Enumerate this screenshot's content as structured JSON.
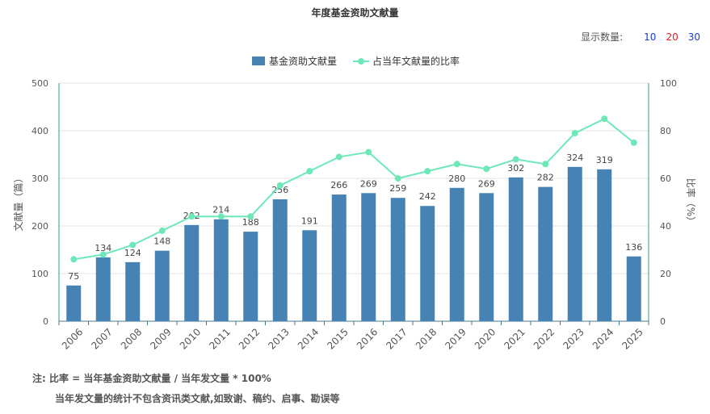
{
  "header": {
    "title": "年度基金资助文献量"
  },
  "display_count": {
    "label": "显示数量:",
    "options": [
      {
        "label": "10",
        "color": "#1a3ccc"
      },
      {
        "label": "20",
        "color": "#e02020"
      },
      {
        "label": "30",
        "color": "#1a3ccc"
      }
    ]
  },
  "notes": {
    "line1": "注:   比率 = 当年基金资助文献量 / 当年发文量 * 100%",
    "line2": "当年发文量的统计不包含资讯类文献,如致谢、稿约、启事、勘误等"
  },
  "chart_data": {
    "type": "bar",
    "title": "年度基金资助文献量",
    "categories": [
      "2006",
      "2007",
      "2008",
      "2009",
      "2010",
      "2011",
      "2012",
      "2013",
      "2014",
      "2015",
      "2016",
      "2017",
      "2018",
      "2019",
      "2020",
      "2021",
      "2022",
      "2023",
      "2024",
      "2025"
    ],
    "series": [
      {
        "name": "基金资助文献量",
        "type": "bar",
        "axis": "left",
        "color": "#4682b4",
        "values": [
          75,
          134,
          124,
          148,
          202,
          214,
          188,
          256,
          191,
          266,
          269,
          259,
          242,
          280,
          269,
          302,
          282,
          324,
          319,
          136
        ]
      },
      {
        "name": "占当年文献量的比率",
        "type": "line",
        "axis": "right",
        "color": "#6ee8b8",
        "values": [
          26,
          28,
          32,
          38,
          44,
          44,
          44,
          57,
          63,
          69,
          71,
          60,
          63,
          66,
          64,
          68,
          66,
          79,
          85,
          75
        ]
      }
    ],
    "ylabel_left": "文献量（篇）",
    "ylabel_right": "比率（%）",
    "ylim_left": [
      0,
      500
    ],
    "ylim_right": [
      0,
      100
    ],
    "yticks_left": [
      "0",
      "100",
      "200",
      "300",
      "400",
      "500"
    ],
    "yticks_right": [
      "0",
      "20",
      "40",
      "60",
      "80",
      "100"
    ],
    "legend": "top-center",
    "grid": true
  }
}
